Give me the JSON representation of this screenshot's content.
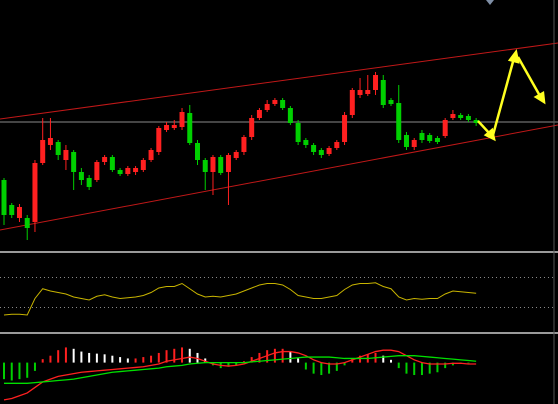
{
  "chart_data": [
    {
      "type": "candlestick",
      "up_color": "#ff2020",
      "down_color": "#00d000",
      "ylim": [
        0,
        250
      ],
      "open": [
        70,
        45,
        32,
        32,
        28,
        87,
        105,
        108,
        90,
        98,
        78,
        72,
        70,
        88,
        93,
        80,
        76,
        78,
        80,
        90,
        98,
        120,
        122,
        123,
        137,
        107,
        90,
        78,
        93,
        78,
        92,
        98,
        113,
        132,
        140,
        146,
        150,
        142,
        127,
        110,
        105,
        100,
        96,
        102,
        108,
        135,
        155,
        156,
        160,
        170,
        150,
        147,
        115,
        103,
        117,
        115,
        112,
        114,
        132,
        135,
        134,
        130
      ],
      "high": [
        72,
        47,
        46,
        35,
        90,
        132,
        132,
        110,
        105,
        100,
        82,
        75,
        90,
        95,
        95,
        82,
        84,
        84,
        92,
        102,
        124,
        128,
        130,
        142,
        145,
        110,
        92,
        95,
        95,
        97,
        100,
        115,
        135,
        142,
        150,
        152,
        152,
        144,
        130,
        112,
        107,
        102,
        104,
        110,
        138,
        162,
        172,
        175,
        178,
        175,
        152,
        165,
        118,
        112,
        120,
        117,
        114,
        132,
        140,
        137,
        136,
        132
      ],
      "low": [
        25,
        32,
        28,
        10,
        18,
        85,
        100,
        90,
        80,
        60,
        65,
        60,
        68,
        85,
        78,
        74,
        74,
        75,
        78,
        88,
        95,
        118,
        120,
        120,
        105,
        85,
        60,
        55,
        75,
        45,
        90,
        95,
        110,
        130,
        138,
        144,
        140,
        125,
        105,
        102,
        95,
        92,
        94,
        100,
        105,
        132,
        152,
        154,
        155,
        142,
        144,
        107,
        100,
        100,
        107,
        107,
        106,
        112,
        130,
        130,
        128,
        124
      ],
      "close": [
        35,
        35,
        43,
        22,
        87,
        110,
        112,
        95,
        100,
        78,
        70,
        63,
        88,
        93,
        80,
        76,
        82,
        82,
        90,
        100,
        122,
        125,
        125,
        138,
        107,
        90,
        78,
        93,
        77,
        95,
        98,
        113,
        132,
        140,
        146,
        150,
        142,
        127,
        108,
        105,
        98,
        95,
        102,
        108,
        135,
        160,
        160,
        160,
        175,
        145,
        146,
        110,
        103,
        110,
        110,
        109,
        108,
        130,
        136,
        132,
        130,
        127
      ]
    },
    {
      "type": "line",
      "color": "#c8b400",
      "ylim": [
        0,
        100
      ],
      "levels": [
        70,
        30
      ],
      "values": [
        20,
        21,
        21,
        20,
        42,
        55,
        52,
        50,
        48,
        44,
        42,
        40,
        45,
        47,
        44,
        42,
        43,
        44,
        46,
        50,
        56,
        58,
        58,
        62,
        55,
        48,
        44,
        45,
        44,
        46,
        48,
        52,
        56,
        60,
        62,
        62,
        60,
        54,
        46,
        44,
        42,
        42,
        44,
        46,
        54,
        60,
        62,
        62,
        63,
        58,
        55,
        44,
        40,
        42,
        41,
        42,
        42,
        48,
        52,
        51,
        50,
        49
      ]
    },
    {
      "type": "macd",
      "ylim": [
        -60,
        40
      ],
      "up_color": "#ff2020",
      "fade_color": "#ffffff",
      "down_color": "#00d000",
      "histogram": [
        -24,
        -26,
        -24,
        -22,
        -12,
        5,
        10,
        18,
        22,
        20,
        16,
        14,
        13,
        12,
        10,
        8,
        6,
        6,
        8,
        10,
        14,
        18,
        20,
        22,
        20,
        14,
        6,
        -4,
        -8,
        -6,
        -4,
        2,
        8,
        14,
        18,
        20,
        20,
        16,
        6,
        -10,
        -16,
        -18,
        -16,
        -12,
        -4,
        6,
        10,
        12,
        14,
        10,
        4,
        -8,
        -16,
        -18,
        -18,
        -16,
        -14,
        -8,
        -4,
        -2,
        -1,
        0
      ],
      "series": [
        {
          "color": "#ff2020",
          "values": [
            -54,
            -52,
            -48,
            -44,
            -36,
            -28,
            -24,
            -20,
            -18,
            -16,
            -14,
            -13,
            -12,
            -11,
            -10,
            -9,
            -8,
            -7,
            -6,
            -4,
            -2,
            2,
            4,
            6,
            8,
            6,
            2,
            -2,
            -4,
            -5,
            -4,
            -2,
            2,
            6,
            10,
            14,
            16,
            16,
            14,
            10,
            4,
            0,
            -2,
            -2,
            0,
            4,
            8,
            12,
            16,
            18,
            18,
            16,
            10,
            4,
            0,
            -2,
            -2,
            -2,
            -1,
            -1,
            -2,
            -2
          ]
        },
        {
          "color": "#00e000",
          "values": [
            -30,
            -30,
            -30,
            -30,
            -29,
            -28,
            -27,
            -26,
            -25,
            -24,
            -22,
            -20,
            -18,
            -16,
            -14,
            -13,
            -12,
            -11,
            -10,
            -9,
            -8,
            -6,
            -5,
            -4,
            -2,
            -1,
            0,
            0,
            0,
            0,
            0,
            0,
            1,
            2,
            3,
            4,
            5,
            6,
            7,
            8,
            8,
            8,
            8,
            7,
            6,
            6,
            6,
            6,
            7,
            8,
            9,
            10,
            10,
            10,
            9,
            8,
            7,
            6,
            5,
            4,
            3,
            2
          ]
        }
      ]
    }
  ]
}
